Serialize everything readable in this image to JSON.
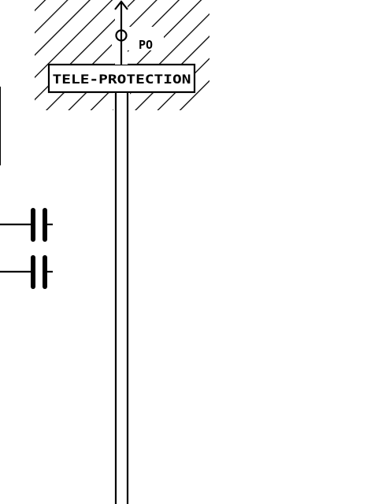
{
  "block": {
    "label": "TELE-PROTECTION",
    "port_label": "PO"
  },
  "colors": {
    "ink": "#000000",
    "paper": "#ffffff"
  },
  "symbols": {
    "contacts": [
      "capacitor-contact",
      "capacitor-contact"
    ]
  }
}
